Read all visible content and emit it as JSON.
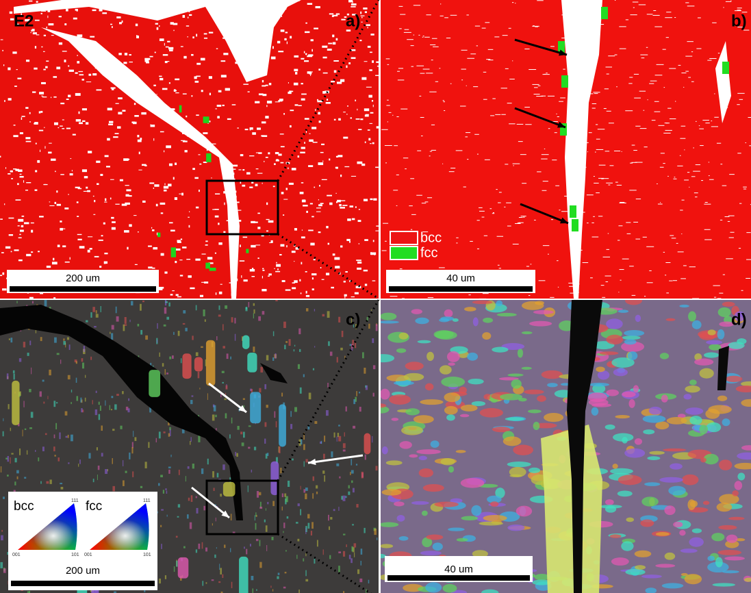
{
  "panels": [
    {
      "tag": "E2",
      "label": "a)",
      "scale_bar": "200 um"
    },
    {
      "label": "b)",
      "scale_bar": "40 um",
      "legend": [
        "bcc",
        "fcc"
      ]
    },
    {
      "label": "c)",
      "scale_bar": "200 um",
      "ipf_keys": [
        {
          "name": "bcc",
          "corners": [
            "111",
            "001",
            "101"
          ]
        },
        {
          "name": "fcc",
          "corners": [
            "111",
            "001",
            "101"
          ]
        }
      ]
    },
    {
      "label": "d)",
      "scale_bar": "40 um"
    }
  ]
}
